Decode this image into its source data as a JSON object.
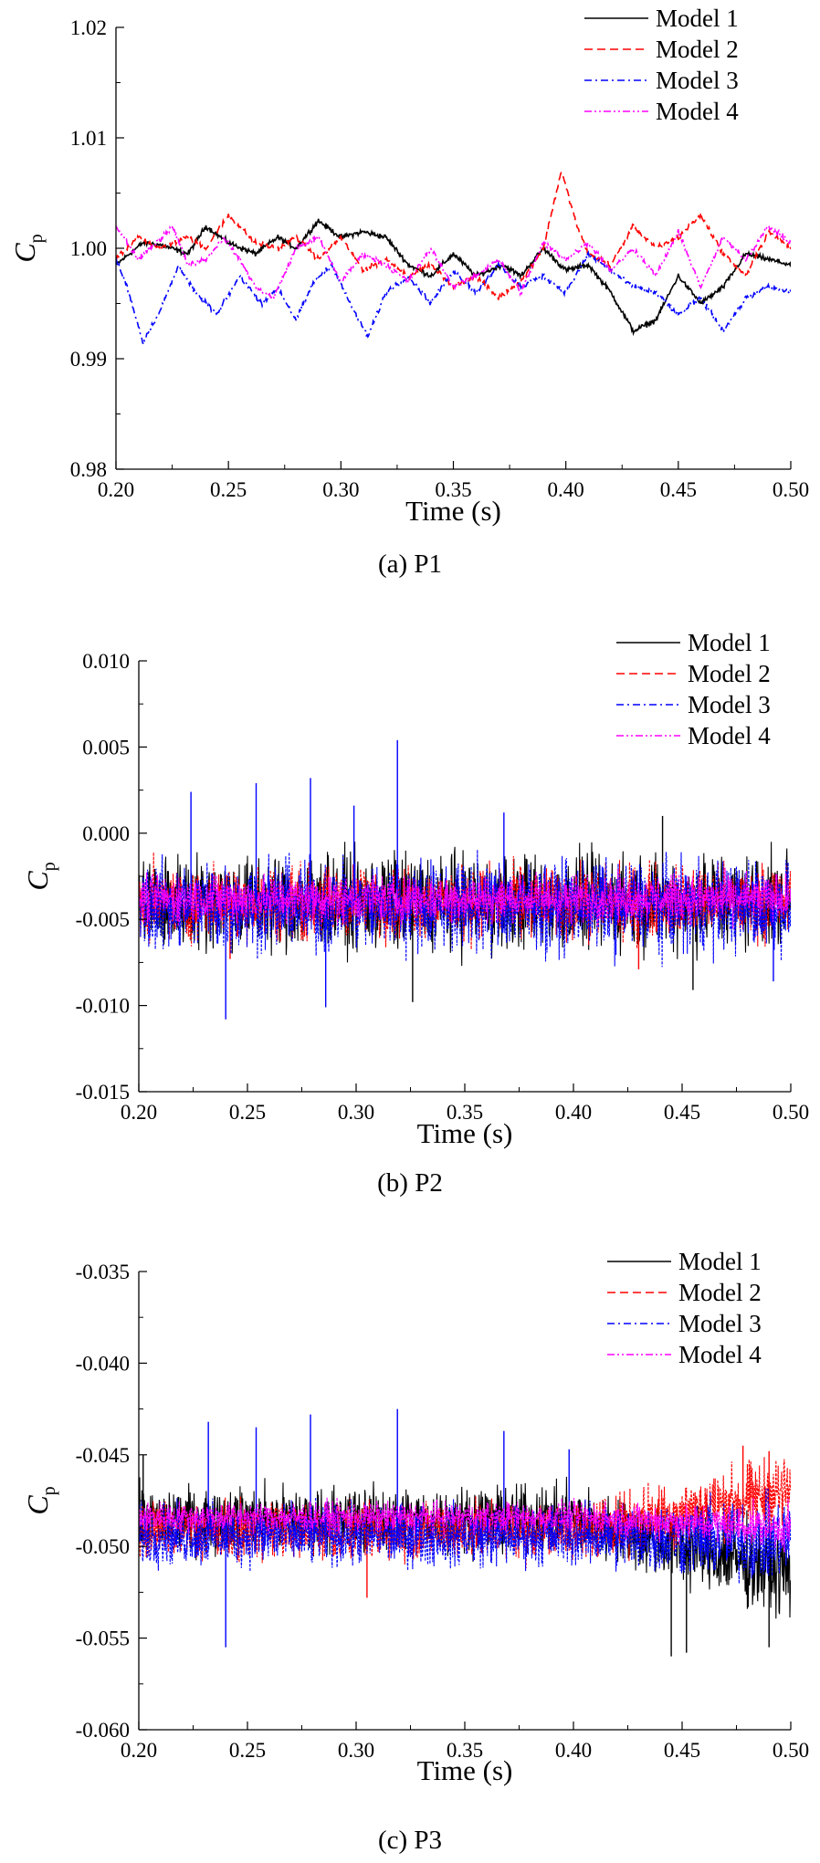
{
  "figure": {
    "series_colors": [
      "#000000",
      "#ff0000",
      "#0000ff",
      "#ff00ff"
    ],
    "series_dash": [
      "solid",
      "dashed",
      "dashdot",
      "dashdotdot"
    ]
  },
  "chart_data": [
    {
      "type": "line",
      "caption": "(a)    P1",
      "xlabel": "Time (s)",
      "ylabel_main": "C",
      "ylabel_sub": "p",
      "xlim": [
        0.2,
        0.5
      ],
      "ylim": [
        0.98,
        1.02
      ],
      "xticks": [
        "0.20",
        "0.25",
        "0.30",
        "0.35",
        "0.40",
        "0.45",
        "0.50"
      ],
      "yticks": [
        "0.98",
        "0.99",
        "1.00",
        "1.01",
        "1.02"
      ],
      "legend_position": "top-right",
      "series": [
        {
          "name": "Model 1",
          "points": [
            [
              0.2,
              0.9985
            ],
            [
              0.212,
              1.0005
            ],
            [
              0.22,
              1.0003
            ],
            [
              0.232,
              0.9995
            ],
            [
              0.24,
              1.002
            ],
            [
              0.25,
              1.0005
            ],
            [
              0.262,
              0.9995
            ],
            [
              0.272,
              1.001
            ],
            [
              0.28,
              1.0
            ],
            [
              0.29,
              1.0025
            ],
            [
              0.3,
              1.001
            ],
            [
              0.31,
              1.0015
            ],
            [
              0.32,
              1.001
            ],
            [
              0.33,
              0.9985
            ],
            [
              0.34,
              0.9975
            ],
            [
              0.35,
              0.9995
            ],
            [
              0.36,
              0.9975
            ],
            [
              0.372,
              0.9985
            ],
            [
              0.38,
              0.9975
            ],
            [
              0.39,
              1.0
            ],
            [
              0.4,
              0.998
            ],
            [
              0.41,
              0.9985
            ],
            [
              0.42,
              0.996
            ],
            [
              0.43,
              0.9925
            ],
            [
              0.44,
              0.9935
            ],
            [
              0.45,
              0.9975
            ],
            [
              0.46,
              0.995
            ],
            [
              0.47,
              0.9965
            ],
            [
              0.48,
              0.9995
            ],
            [
              0.49,
              0.999
            ],
            [
              0.5,
              0.9985
            ]
          ]
        },
        {
          "name": "Model 2",
          "points": [
            [
              0.2,
              0.999
            ],
            [
              0.21,
              1.001
            ],
            [
              0.22,
              1.0
            ],
            [
              0.232,
              1.001
            ],
            [
              0.24,
              1.0
            ],
            [
              0.25,
              1.003
            ],
            [
              0.262,
              1.0005
            ],
            [
              0.272,
              1.0
            ],
            [
              0.28,
              1.001
            ],
            [
              0.29,
              0.999
            ],
            [
              0.3,
              1.001
            ],
            [
              0.31,
              0.998
            ],
            [
              0.32,
              0.999
            ],
            [
              0.33,
              0.9975
            ],
            [
              0.34,
              0.9985
            ],
            [
              0.35,
              0.9965
            ],
            [
              0.36,
              0.9975
            ],
            [
              0.37,
              0.9955
            ],
            [
              0.38,
              0.997
            ],
            [
              0.39,
              1.0
            ],
            [
              0.398,
              1.007
            ],
            [
              0.405,
              1.002
            ],
            [
              0.41,
              0.9995
            ],
            [
              0.42,
              0.9985
            ],
            [
              0.43,
              1.002
            ],
            [
              0.44,
              1.0
            ],
            [
              0.45,
              1.001
            ],
            [
              0.46,
              1.003
            ],
            [
              0.47,
              0.9995
            ],
            [
              0.48,
              0.9975
            ],
            [
              0.49,
              1.0015
            ],
            [
              0.5,
              1.0
            ]
          ]
        },
        {
          "name": "Model 3",
          "points": [
            [
              0.2,
              0.999
            ],
            [
              0.205,
              0.9965
            ],
            [
              0.212,
              0.9915
            ],
            [
              0.22,
              0.9945
            ],
            [
              0.228,
              0.9985
            ],
            [
              0.235,
              0.996
            ],
            [
              0.245,
              0.994
            ],
            [
              0.255,
              0.9975
            ],
            [
              0.265,
              0.995
            ],
            [
              0.272,
              0.9965
            ],
            [
              0.28,
              0.9935
            ],
            [
              0.288,
              0.997
            ],
            [
              0.296,
              0.9985
            ],
            [
              0.304,
              0.995
            ],
            [
              0.312,
              0.992
            ],
            [
              0.32,
              0.996
            ],
            [
              0.33,
              0.9975
            ],
            [
              0.34,
              0.995
            ],
            [
              0.35,
              0.998
            ],
            [
              0.36,
              0.996
            ],
            [
              0.37,
              0.9985
            ],
            [
              0.38,
              0.9965
            ],
            [
              0.39,
              0.9975
            ],
            [
              0.4,
              0.996
            ],
            [
              0.41,
              0.9995
            ],
            [
              0.42,
              0.998
            ],
            [
              0.43,
              0.9965
            ],
            [
              0.44,
              0.996
            ],
            [
              0.45,
              0.994
            ],
            [
              0.46,
              0.9955
            ],
            [
              0.47,
              0.9925
            ],
            [
              0.48,
              0.9955
            ],
            [
              0.49,
              0.9965
            ],
            [
              0.5,
              0.996
            ]
          ]
        },
        {
          "name": "Model 4",
          "points": [
            [
              0.2,
              1.002
            ],
            [
              0.21,
              0.999
            ],
            [
              0.218,
              1.0005
            ],
            [
              0.225,
              1.002
            ],
            [
              0.232,
              0.9985
            ],
            [
              0.24,
              0.999
            ],
            [
              0.248,
              1.001
            ],
            [
              0.255,
              0.999
            ],
            [
              0.262,
              0.9965
            ],
            [
              0.27,
              0.9955
            ],
            [
              0.28,
              1.0
            ],
            [
              0.29,
              1.001
            ],
            [
              0.3,
              0.997
            ],
            [
              0.31,
              0.9995
            ],
            [
              0.32,
              0.9985
            ],
            [
              0.33,
              0.997
            ],
            [
              0.34,
              1.0
            ],
            [
              0.35,
              0.9965
            ],
            [
              0.36,
              0.9975
            ],
            [
              0.37,
              0.999
            ],
            [
              0.38,
              0.996
            ],
            [
              0.39,
              1.0005
            ],
            [
              0.4,
              0.999
            ],
            [
              0.41,
              1.0005
            ],
            [
              0.42,
              0.998
            ],
            [
              0.43,
              1.0
            ],
            [
              0.44,
              0.9975
            ],
            [
              0.45,
              1.0015
            ],
            [
              0.46,
              0.9965
            ],
            [
              0.47,
              1.001
            ],
            [
              0.48,
              0.999
            ],
            [
              0.49,
              1.002
            ],
            [
              0.5,
              1.0005
            ]
          ]
        }
      ]
    },
    {
      "type": "line",
      "caption": "(b)    P2",
      "xlabel": "Time (s)",
      "ylabel_main": "C",
      "ylabel_sub": "p",
      "xlim": [
        0.2,
        0.5
      ],
      "ylim": [
        -0.015,
        0.01
      ],
      "xticks": [
        "0.20",
        "0.25",
        "0.30",
        "0.35",
        "0.40",
        "0.45",
        "0.50"
      ],
      "yticks": [
        "-0.015",
        "-0.010",
        "-0.005",
        "0.000",
        "0.005",
        "0.010"
      ],
      "legend_position": "top-right",
      "series": [
        {
          "name": "Model 1",
          "mean": -0.004,
          "band": [
            -0.0085,
            -0.0005
          ],
          "spikes": [
            [
              0.326,
              -0.0098
            ],
            [
              0.441,
              0.001
            ],
            [
              0.455,
              -0.0091
            ]
          ]
        },
        {
          "name": "Model 2",
          "mean": -0.004,
          "band": [
            -0.007,
            -0.001
          ],
          "spikes": [
            [
              0.242,
              -0.0073
            ],
            [
              0.43,
              -0.0079
            ]
          ]
        },
        {
          "name": "Model 3",
          "mean": -0.0042,
          "band": [
            -0.008,
            -0.0005
          ],
          "spikes": [
            [
              0.224,
              0.0024
            ],
            [
              0.24,
              -0.0108
            ],
            [
              0.254,
              0.0029
            ],
            [
              0.279,
              0.0032
            ],
            [
              0.286,
              -0.0101
            ],
            [
              0.299,
              0.0016
            ],
            [
              0.319,
              0.0054
            ],
            [
              0.368,
              0.0012
            ],
            [
              0.492,
              -0.0086
            ]
          ]
        },
        {
          "name": "Model 4",
          "mean": -0.0038,
          "band": [
            -0.0058,
            -0.002
          ],
          "spikes": []
        }
      ]
    },
    {
      "type": "line",
      "caption": "(c)    P3",
      "xlabel": "Time (s)",
      "ylabel_main": "C",
      "ylabel_sub": "p",
      "xlim": [
        0.2,
        0.5
      ],
      "ylim": [
        -0.06,
        -0.035
      ],
      "xticks": [
        "0.20",
        "0.25",
        "0.30",
        "0.35",
        "0.40",
        "0.45",
        "0.50"
      ],
      "yticks": [
        "-0.060",
        "-0.055",
        "-0.050",
        "-0.045",
        "-0.040",
        "-0.035"
      ],
      "legend_position": "top-right",
      "series": [
        {
          "name": "Model 1",
          "mean_start": -0.0485,
          "mean_end": -0.0515,
          "band": 0.0025,
          "spikes": [
            [
              0.202,
              -0.045
            ],
            [
              0.445,
              -0.056
            ],
            [
              0.452,
              -0.0558
            ],
            [
              0.49,
              -0.0555
            ]
          ]
        },
        {
          "name": "Model 2",
          "mean_start": -0.0492,
          "mean_end": -0.047,
          "band": 0.0022,
          "spikes": [
            [
              0.305,
              -0.0528
            ],
            [
              0.478,
              -0.0445
            ],
            [
              0.49,
              -0.0448
            ]
          ]
        },
        {
          "name": "Model 3",
          "mean_start": -0.0494,
          "mean_end": -0.0497,
          "band": 0.0024,
          "spikes": [
            [
              0.232,
              -0.0432
            ],
            [
              0.24,
              -0.0555
            ],
            [
              0.254,
              -0.0435
            ],
            [
              0.279,
              -0.0428
            ],
            [
              0.319,
              -0.0425
            ],
            [
              0.368,
              -0.0437
            ],
            [
              0.398,
              -0.0447
            ]
          ]
        },
        {
          "name": "Model 4",
          "mean_start": -0.0484,
          "mean_end": -0.049,
          "band": 0.0012,
          "spikes": []
        }
      ]
    }
  ]
}
